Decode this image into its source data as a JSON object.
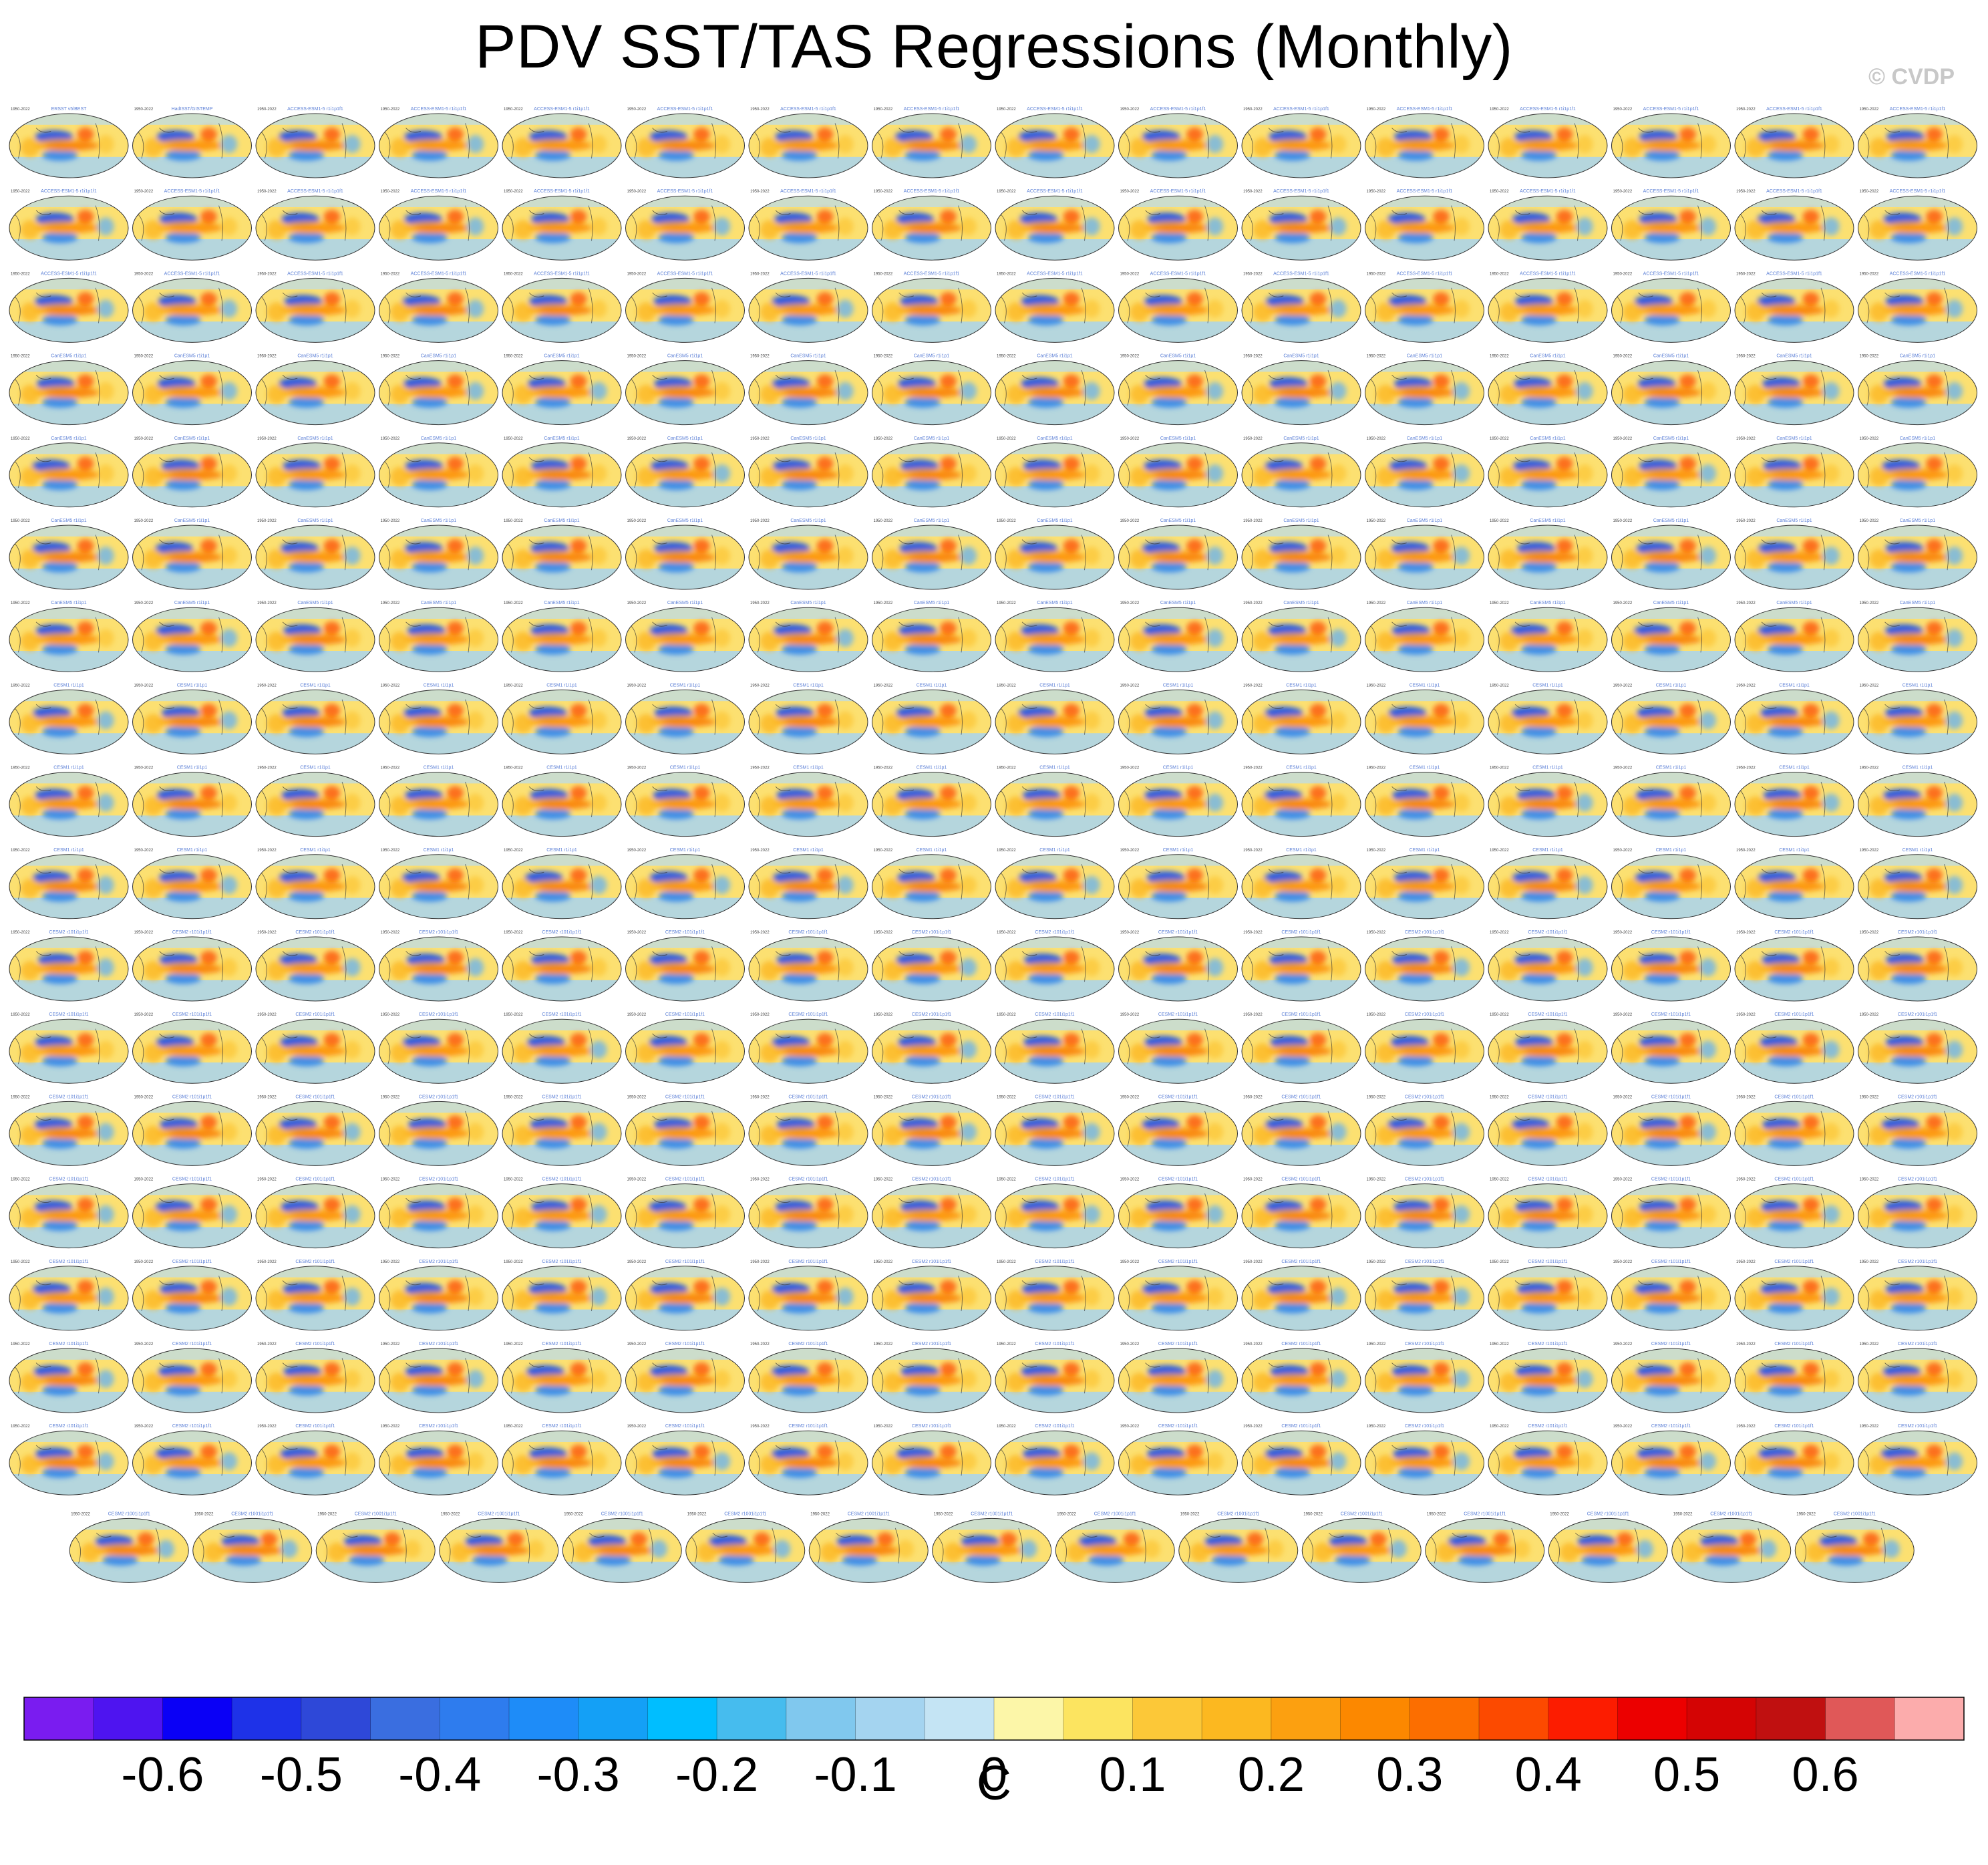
{
  "title": "PDV SST/TAS Regressions (Monthly)",
  "copyright": "© CVDP",
  "chart_data": {
    "type": "map-panel-grid",
    "description_units": "C",
    "panel_rows": 18,
    "panels_per_full_row": 16,
    "last_row_panels": 15,
    "panel_date_range": "1950-2022",
    "panel_titles_sample": [
      "ERSST v5/BEST",
      "HadISST/GISTEMP",
      "ACCESS-ESM1-5 r1i1p1f1",
      "CanESM5 r1i1p1",
      "CESM1 r1i1p1",
      "CESM2 r101i1p1f1",
      "CESM2 r1001i1p1f1"
    ],
    "colorbar": {
      "label": "C",
      "tick_labels": [
        "-0.6",
        "-0.5",
        "-0.4",
        "-0.3",
        "-0.2",
        "-0.1",
        "0",
        "0.1",
        "0.2",
        "0.3",
        "0.4",
        "0.5",
        "0.6"
      ],
      "tick_values": [
        -0.6,
        -0.5,
        -0.4,
        -0.3,
        -0.2,
        -0.1,
        0,
        0.1,
        0.2,
        0.3,
        0.4,
        0.5,
        0.6
      ],
      "range": [
        -0.7,
        0.7
      ],
      "step": 0.05,
      "colors": [
        "#7a1cf0",
        "#4e14f0",
        "#0a00f6",
        "#1e32e8",
        "#2e48d8",
        "#3a6ee0",
        "#2e7cee",
        "#1e8cf8",
        "#14a0f6",
        "#00beff",
        "#46bcee",
        "#80c8ee",
        "#a4d4f0",
        "#c4e4f4",
        "#fcf6a8",
        "#fce460",
        "#fcc838",
        "#fcb820",
        "#fca010",
        "#fc8800",
        "#fc6e00",
        "#fc4a00",
        "#fc1c00",
        "#ec0000",
        "#d40404",
        "#c01010",
        "#e05858",
        "#fcacac"
      ]
    }
  }
}
